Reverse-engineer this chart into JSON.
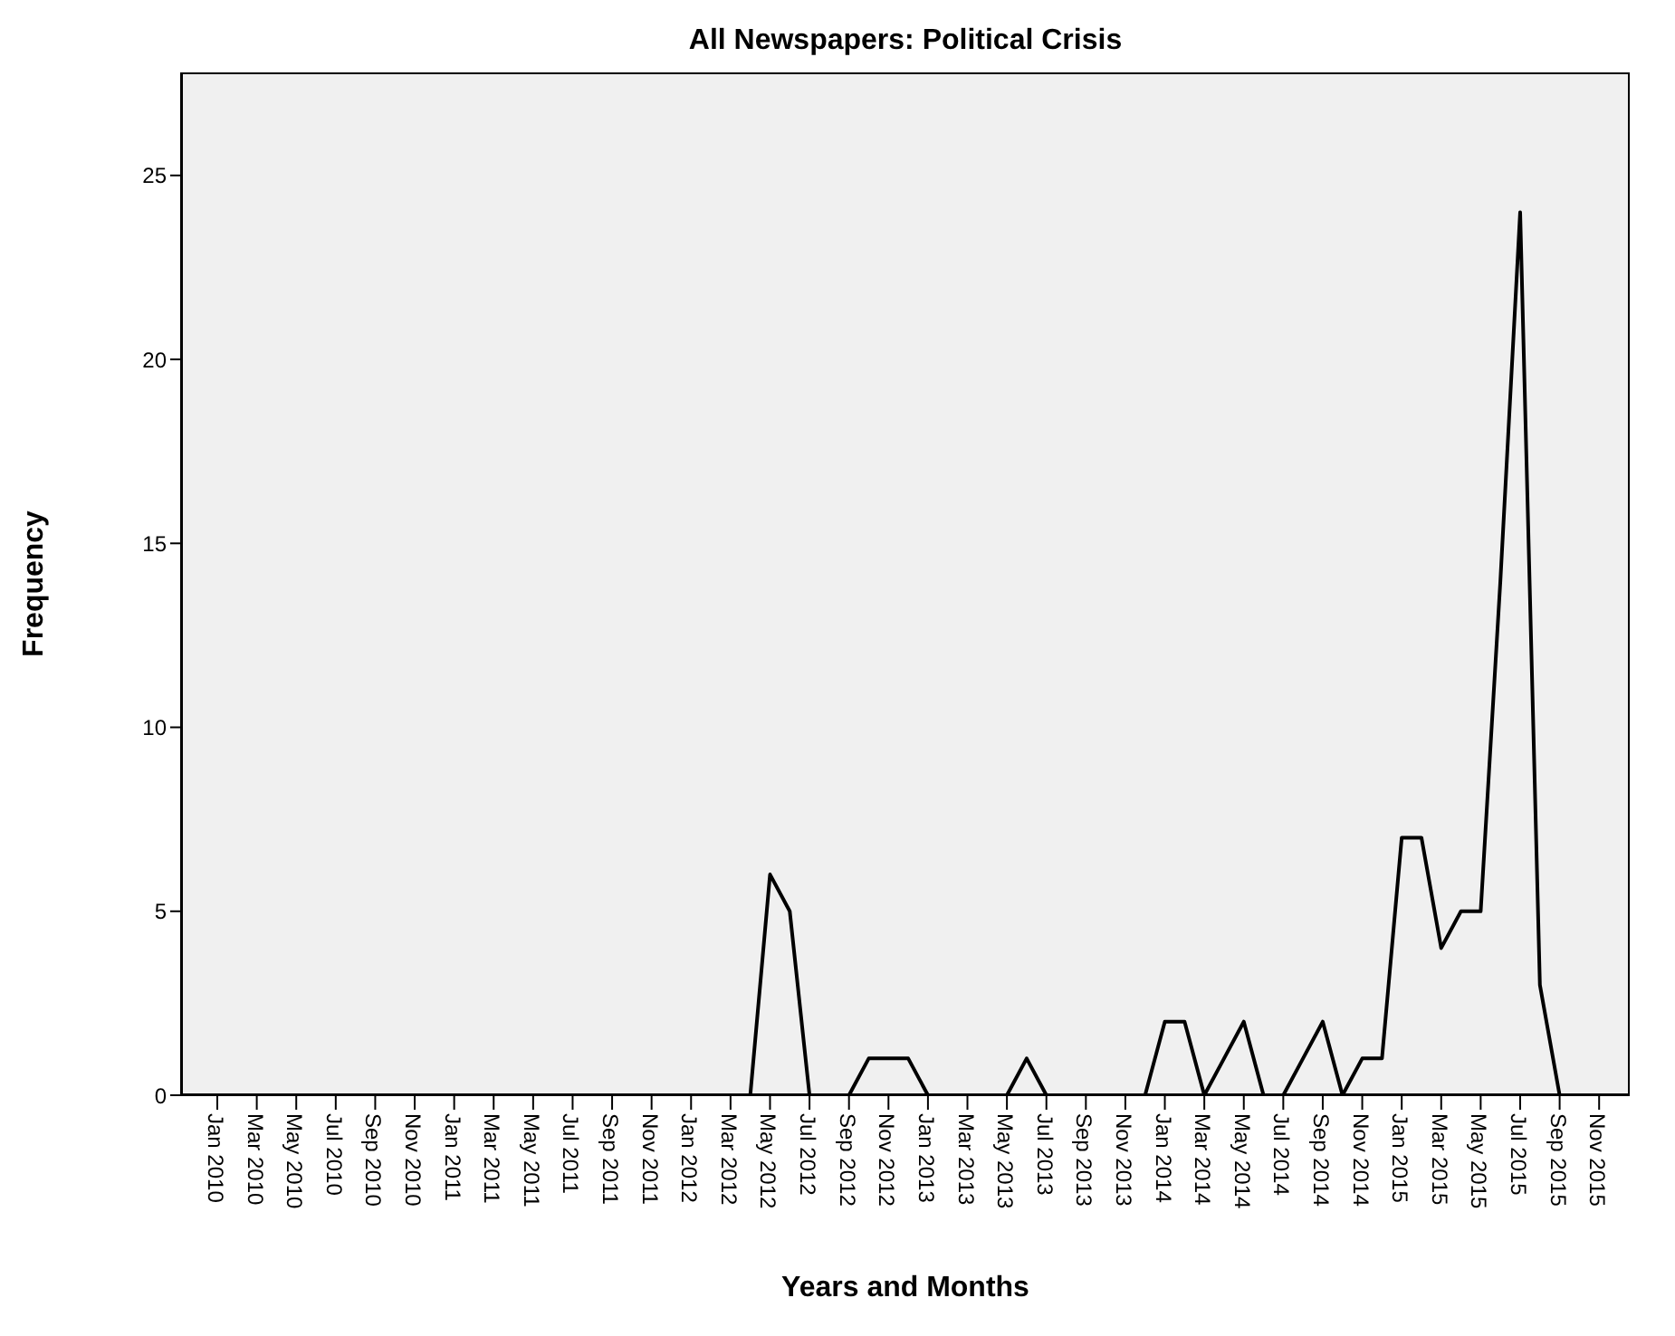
{
  "chart_data": {
    "type": "line",
    "title": "All Newspapers: Political Crisis",
    "xlabel": "Years and Months",
    "ylabel": "Frequency",
    "categories": [
      "Jan 2010",
      null,
      "Mar 2010",
      null,
      "May 2010",
      null,
      "Jul 2010",
      null,
      "Sep 2010",
      null,
      "Nov 2010",
      null,
      "Jan 2011",
      null,
      "Mar 2011",
      null,
      "May 2011",
      null,
      "Jul 2011",
      null,
      "Sep 2011",
      null,
      "Nov 2011",
      null,
      "Jan 2012",
      null,
      "Mar 2012",
      null,
      "May 2012",
      null,
      "Jul 2012",
      null,
      "Sep 2012",
      null,
      "Nov 2012",
      null,
      "Jan 2013",
      null,
      "Mar 2013",
      null,
      "May 2013",
      null,
      "Jul 2013",
      null,
      "Sep 2013",
      null,
      "Nov 2013",
      null,
      "Jan 2014",
      null,
      "Mar 2014",
      null,
      "May 2014",
      null,
      "Jul 2014",
      null,
      "Sep 2014",
      null,
      "Nov 2014",
      null,
      "Jan 2015",
      null,
      "Mar 2015",
      null,
      "May 2015",
      null,
      "Jul 2015",
      null,
      "Sep 2015",
      null,
      "Nov 2015",
      null
    ],
    "series": [
      {
        "color": "#000000",
        "values": [
          0,
          0,
          0,
          0,
          0,
          0,
          0,
          0,
          0,
          0,
          0,
          0,
          0,
          0,
          0,
          0,
          0,
          0,
          0,
          0,
          0,
          0,
          0,
          0,
          0,
          0,
          0,
          0,
          6,
          5,
          0,
          0,
          0,
          1,
          1,
          1,
          0,
          0,
          0,
          0,
          0,
          1,
          0,
          0,
          0,
          0,
          0,
          0,
          2,
          2,
          0,
          1,
          2,
          0,
          0,
          1,
          2,
          0,
          1,
          1,
          7,
          7,
          4,
          5,
          5,
          14,
          24,
          3,
          0,
          0,
          0,
          0
        ]
      }
    ],
    "ylim": [
      0,
      27.8
    ],
    "yticks": [
      0,
      5,
      10,
      15,
      20,
      25
    ],
    "grid": false,
    "marker": "none",
    "line_style": "solid"
  }
}
